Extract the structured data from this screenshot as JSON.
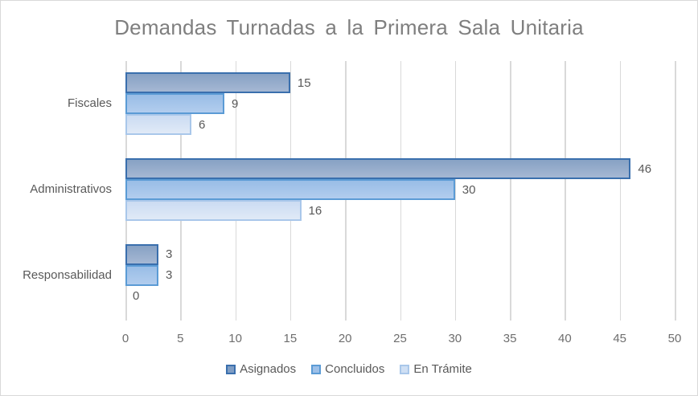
{
  "chart_data": {
    "type": "bar",
    "orientation": "horizontal",
    "title": "Demandas Turnadas a la Primera Sala Unitaria",
    "categories": [
      "Fiscales",
      "Administrativos",
      "Responsabilidad"
    ],
    "series": [
      {
        "name": "Asignados",
        "values": [
          15,
          46,
          3
        ],
        "fill_top": "#87A1C4",
        "fill_bottom": "#A5B7D3",
        "border": "#3A6FAD",
        "legend_fill": "#7F9DC4"
      },
      {
        "name": "Concluidos",
        "values": [
          9,
          30,
          3
        ],
        "fill_top": "#99BDE6",
        "fill_bottom": "#B2CDEE",
        "border": "#5B9BD5",
        "legend_fill": "#9DC0E8"
      },
      {
        "name": "En Trámite",
        "values": [
          6,
          16,
          0
        ],
        "fill_top": "#CBDBF2",
        "fill_bottom": "#E0EAF7",
        "border": "#A9C7EA",
        "legend_fill": "#CFDFF4"
      }
    ],
    "xlim": [
      0,
      50
    ],
    "x_ticks": [
      0,
      5,
      10,
      15,
      20,
      25,
      30,
      35,
      40,
      45,
      50
    ],
    "grid": true,
    "legend_position": "bottom",
    "colors": {
      "title_text": "#7F7F7F",
      "label_text": "#595959",
      "tick_text": "#6E6E6E",
      "gridline": "#D9D9D9",
      "frame": "#D9D9D9"
    }
  }
}
